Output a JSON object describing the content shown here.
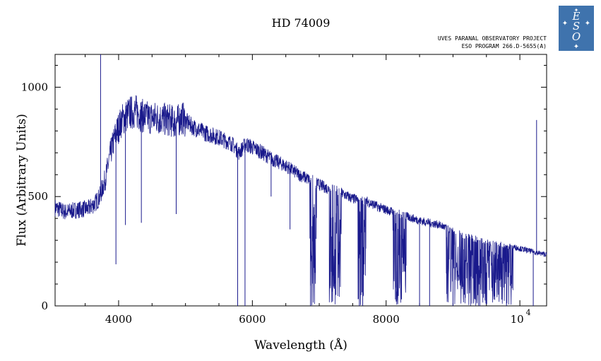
{
  "chart_data": {
    "type": "line",
    "title": "HD 74009",
    "subtitle_lines": [
      "UVES PARANAL OBSERVATORY PROJECT",
      "ESO PROGRAM 266.D-5655(A)"
    ],
    "xlabel": "Wavelength (Å)",
    "ylabel": "Flux (Arbitrary Units)",
    "xlim": [
      3050,
      10400
    ],
    "ylim": [
      0,
      1150
    ],
    "x_ticks": [
      {
        "value": 4000,
        "label": "4000"
      },
      {
        "value": 6000,
        "label": "6000"
      },
      {
        "value": 8000,
        "label": "8000"
      }
    ],
    "x_power_tick": {
      "value": 10000,
      "base": "10",
      "exponent": "4"
    },
    "y_ticks": [
      {
        "value": 0,
        "label": "0"
      },
      {
        "value": 500,
        "label": "500"
      },
      {
        "value": 1000,
        "label": "1000"
      }
    ],
    "x_minor_step": 500,
    "y_minor_step": 100,
    "grid": false,
    "series": [
      {
        "color": "#1a1a8c",
        "x": [
          3050,
          3200,
          3400,
          3550,
          3650,
          3720,
          3800,
          3880,
          3950,
          4050,
          4150,
          4250,
          4350,
          4450,
          4550,
          4650,
          4750,
          4850,
          4950,
          5100,
          5300,
          5500,
          5700,
          5800,
          5900,
          6100,
          6300,
          6500,
          6700,
          6900,
          7100,
          7300,
          7500,
          7700,
          7900,
          8100,
          8300,
          8500,
          8650,
          8800,
          8950,
          9100,
          9300,
          9500,
          9700,
          9900,
          10100,
          10300,
          10400
        ],
        "y": [
          450,
          430,
          440,
          445,
          470,
          500,
          580,
          700,
          780,
          850,
          880,
          890,
          870,
          860,
          860,
          855,
          850,
          840,
          860,
          820,
          790,
          770,
          740,
          700,
          740,
          710,
          670,
          640,
          600,
          570,
          540,
          520,
          490,
          480,
          450,
          430,
          410,
          390,
          380,
          370,
          350,
          330,
          310,
          290,
          280,
          270,
          255,
          240,
          235
        ]
      }
    ],
    "absorption_features": [
      {
        "x": 3730,
        "y": 1150,
        "note": "spike"
      },
      {
        "x": 3960,
        "y": 190
      },
      {
        "x": 4102,
        "y": 370
      },
      {
        "x": 4340,
        "y": 380
      },
      {
        "x": 4861,
        "y": 420
      },
      {
        "x": 5780,
        "y": 0
      },
      {
        "x": 5890,
        "y": 0
      },
      {
        "x": 6280,
        "y": 500
      },
      {
        "x": 6563,
        "y": 350
      },
      {
        "x": 6870,
        "y": 0
      },
      {
        "x": 7200,
        "y": 20
      },
      {
        "x": 7250,
        "y": 50
      },
      {
        "x": 7600,
        "y": 0
      },
      {
        "x": 7650,
        "y": 0
      },
      {
        "x": 8150,
        "y": 20
      },
      {
        "x": 8230,
        "y": 30
      },
      {
        "x": 8500,
        "y": 0
      },
      {
        "x": 8650,
        "y": 0
      },
      {
        "x": 9000,
        "y": 0
      },
      {
        "x": 9400,
        "y": 0
      },
      {
        "x": 9800,
        "y": 0
      },
      {
        "x": 10200,
        "y": 0
      },
      {
        "x": 10250,
        "y": 850,
        "note": "spike"
      }
    ]
  },
  "logo": {
    "text": "ESO"
  }
}
